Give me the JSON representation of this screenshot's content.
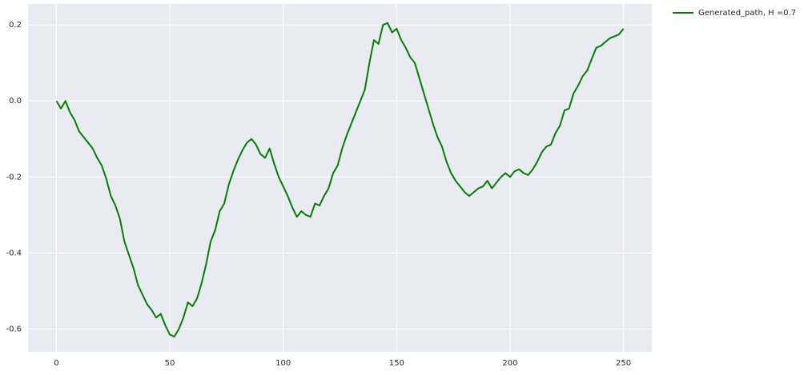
{
  "chart_data": {
    "type": "line",
    "x": [
      0,
      2,
      4,
      6,
      8,
      10,
      12,
      14,
      16,
      18,
      20,
      22,
      24,
      26,
      28,
      30,
      32,
      34,
      36,
      38,
      40,
      42,
      44,
      46,
      48,
      50,
      52,
      54,
      56,
      58,
      60,
      62,
      64,
      66,
      68,
      70,
      72,
      74,
      76,
      78,
      80,
      82,
      84,
      86,
      88,
      90,
      92,
      94,
      96,
      98,
      100,
      102,
      104,
      106,
      108,
      110,
      112,
      114,
      116,
      118,
      120,
      122,
      124,
      126,
      128,
      130,
      132,
      134,
      136,
      138,
      140,
      142,
      144,
      146,
      148,
      150,
      152,
      154,
      156,
      158,
      160,
      162,
      164,
      166,
      168,
      170,
      172,
      174,
      176,
      178,
      180,
      182,
      184,
      186,
      188,
      190,
      192,
      194,
      196,
      198,
      200,
      202,
      204,
      206,
      208,
      210,
      212,
      214,
      216,
      218,
      220,
      222,
      224,
      226,
      228,
      230,
      232,
      234,
      236,
      238,
      240,
      242,
      244,
      246,
      248,
      250
    ],
    "series": [
      {
        "name": "Generated_path, H =0.7",
        "color": "#008000",
        "values": [
          0,
          -0.02,
          0.0,
          -0.03,
          -0.05,
          -0.08,
          -0.095,
          -0.11,
          -0.125,
          -0.15,
          -0.17,
          -0.205,
          -0.25,
          -0.275,
          -0.31,
          -0.37,
          -0.405,
          -0.44,
          -0.485,
          -0.51,
          -0.535,
          -0.55,
          -0.57,
          -0.56,
          -0.59,
          -0.615,
          -0.62,
          -0.6,
          -0.57,
          -0.53,
          -0.54,
          -0.52,
          -0.48,
          -0.43,
          -0.37,
          -0.34,
          -0.29,
          -0.27,
          -0.22,
          -0.185,
          -0.155,
          -0.13,
          -0.11,
          -0.1,
          -0.115,
          -0.14,
          -0.15,
          -0.125,
          -0.165,
          -0.2,
          -0.225,
          -0.25,
          -0.28,
          -0.305,
          -0.29,
          -0.3,
          -0.305,
          -0.27,
          -0.275,
          -0.25,
          -0.23,
          -0.19,
          -0.17,
          -0.125,
          -0.09,
          -0.06,
          -0.03,
          0.0,
          0.03,
          0.1,
          0.16,
          0.15,
          0.2,
          0.205,
          0.18,
          0.19,
          0.16,
          0.14,
          0.115,
          0.1,
          0.06,
          0.02,
          -0.02,
          -0.06,
          -0.095,
          -0.12,
          -0.16,
          -0.19,
          -0.21,
          -0.225,
          -0.24,
          -0.25,
          -0.24,
          -0.23,
          -0.225,
          -0.21,
          -0.23,
          -0.215,
          -0.2,
          -0.19,
          -0.2,
          -0.185,
          -0.18,
          -0.19,
          -0.195,
          -0.18,
          -0.16,
          -0.135,
          -0.12,
          -0.115,
          -0.085,
          -0.065,
          -0.025,
          -0.02,
          0.02,
          0.04,
          0.065,
          0.08,
          0.11,
          0.14,
          0.145,
          0.155,
          0.165,
          0.17,
          0.175,
          0.19
        ]
      }
    ],
    "xlim": [
      -12.5,
      262.5
    ],
    "xticks": [
      0,
      50,
      100,
      150,
      200,
      250
    ],
    "ylim": [
      -0.66,
      0.255
    ],
    "yticks": [
      0.2,
      {
        "value": 0,
        "label": "0.0"
      },
      -0.2,
      -0.4,
      -0.6
    ],
    "grid": true,
    "legend": "outside upper right"
  }
}
